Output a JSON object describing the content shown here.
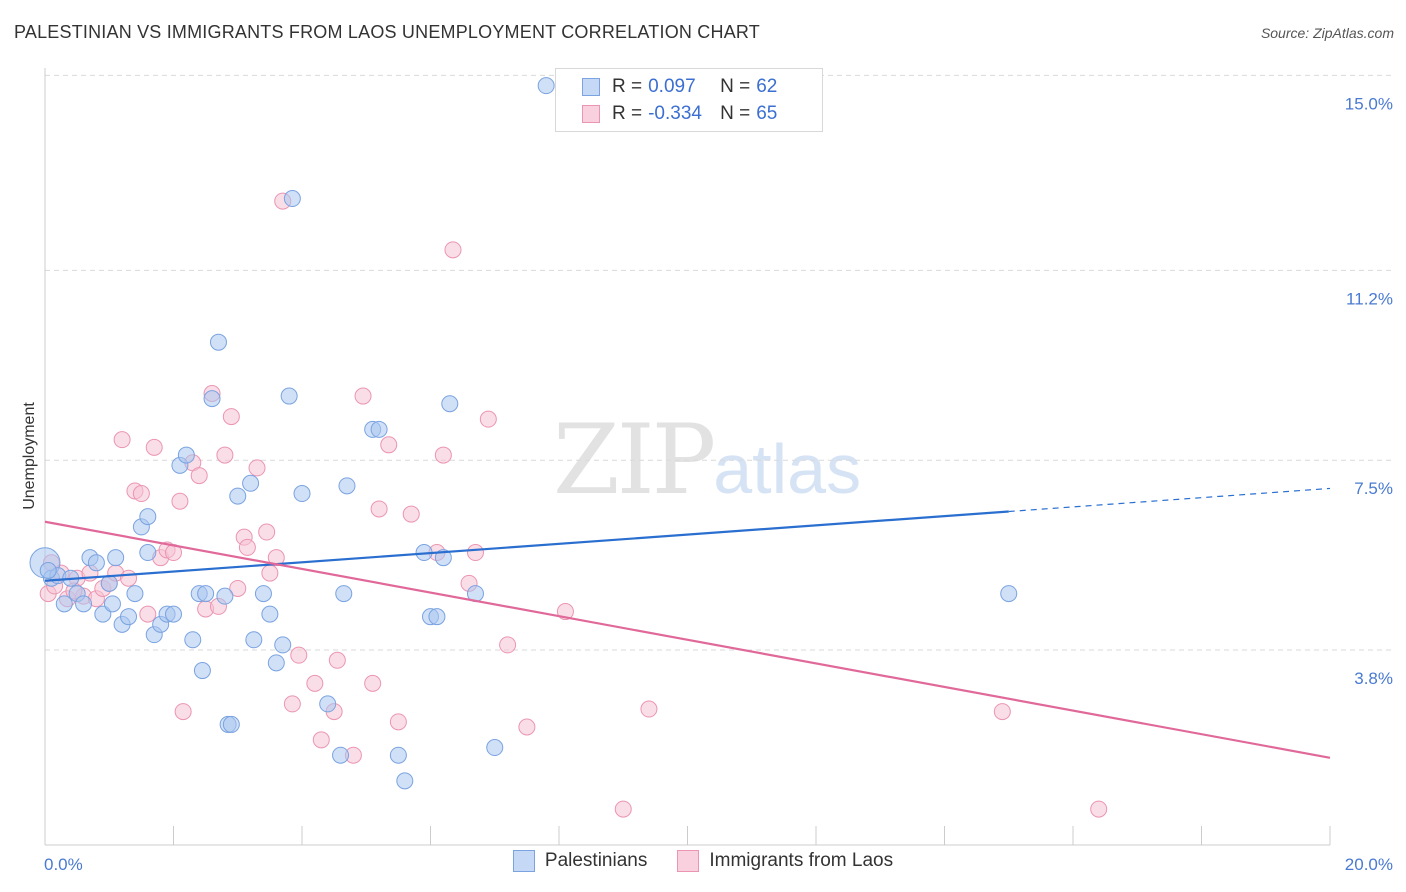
{
  "header": {
    "title": "PALESTINIAN VS IMMIGRANTS FROM LAOS UNEMPLOYMENT CORRELATION CHART",
    "source": "Source: ZipAtlas.com"
  },
  "watermark": {
    "zip": "ZIP",
    "atlas": "atlas"
  },
  "legend": {
    "row1": {
      "r_label": "R =",
      "r_value": "0.097",
      "n_label": "N =",
      "n_value": "62"
    },
    "row2": {
      "r_label": "R =",
      "r_value": "-0.334",
      "n_label": "N =",
      "n_value": "65"
    }
  },
  "bottom_legend": {
    "series1": "Palestinians",
    "series2": "Immigrants from Laos"
  },
  "colors": {
    "blue_fill": "#a9c6f0",
    "blue_stroke": "#7aa3e0",
    "blue_line": "#2a6fd0",
    "pink_fill": "#f6c3d3",
    "pink_stroke": "#eb95b2",
    "pink_line": "#e0699a",
    "grid": "#d9d9d9",
    "tick_text": "#4a7ad1"
  },
  "chart_data": {
    "type": "scatter",
    "title": "PALESTINIAN VS IMMIGRANTS FROM LAOS UNEMPLOYMENT CORRELATION CHART",
    "xlabel": "",
    "ylabel": "Unemployment",
    "xlim": [
      0,
      20
    ],
    "ylim": [
      0,
      15.3
    ],
    "x_ticks": [
      {
        "value": 0,
        "label": "0.0%"
      },
      {
        "value": 20,
        "label": "20.0%"
      }
    ],
    "y_ticks": [
      {
        "value": 3.8,
        "label": "3.8%"
      },
      {
        "value": 7.5,
        "label": "7.5%"
      },
      {
        "value": 11.2,
        "label": "11.2%"
      },
      {
        "value": 15.0,
        "label": "15.0%"
      }
    ],
    "grid": "horizontal dashed",
    "legend_position": "top-center",
    "series": [
      {
        "name": "Palestinians",
        "color": "#a9c6f0",
        "r": 0.097,
        "n": 62,
        "trend": {
          "x0": 0,
          "y0": 5.15,
          "x1": 15.0,
          "y1": 6.5,
          "dash_to_x": 20,
          "dash_to_y": 6.95
        },
        "points": [
          [
            0.0,
            5.5
          ],
          [
            0.1,
            5.2
          ],
          [
            0.2,
            5.25
          ],
          [
            0.3,
            4.7
          ],
          [
            0.4,
            5.2
          ],
          [
            0.5,
            4.9
          ],
          [
            0.6,
            4.7
          ],
          [
            0.7,
            5.6
          ],
          [
            0.8,
            5.5
          ],
          [
            0.9,
            4.5
          ],
          [
            1.0,
            5.1
          ],
          [
            1.05,
            4.7
          ],
          [
            1.1,
            5.6
          ],
          [
            1.2,
            4.3
          ],
          [
            1.3,
            4.45
          ],
          [
            1.4,
            4.9
          ],
          [
            1.5,
            6.2
          ],
          [
            1.6,
            6.4
          ],
          [
            1.6,
            5.7
          ],
          [
            1.7,
            4.1
          ],
          [
            1.8,
            4.3
          ],
          [
            1.9,
            4.5
          ],
          [
            2.0,
            4.5
          ],
          [
            2.1,
            7.4
          ],
          [
            2.2,
            7.6
          ],
          [
            2.3,
            4.0
          ],
          [
            2.4,
            4.9
          ],
          [
            2.45,
            3.4
          ],
          [
            2.5,
            4.9
          ],
          [
            2.6,
            8.7
          ],
          [
            2.7,
            9.8
          ],
          [
            2.8,
            4.85
          ],
          [
            2.85,
            2.35
          ],
          [
            2.9,
            2.35
          ],
          [
            3.0,
            6.8
          ],
          [
            3.2,
            7.05
          ],
          [
            3.25,
            4.0
          ],
          [
            3.4,
            4.9
          ],
          [
            3.5,
            4.5
          ],
          [
            3.6,
            3.55
          ],
          [
            3.7,
            3.9
          ],
          [
            3.8,
            8.75
          ],
          [
            3.85,
            12.6
          ],
          [
            4.0,
            6.85
          ],
          [
            4.4,
            2.75
          ],
          [
            4.6,
            1.75
          ],
          [
            4.65,
            4.9
          ],
          [
            4.7,
            7.0
          ],
          [
            5.1,
            8.1
          ],
          [
            5.2,
            8.1
          ],
          [
            5.5,
            1.75
          ],
          [
            5.6,
            1.25
          ],
          [
            5.9,
            5.7
          ],
          [
            6.0,
            4.45
          ],
          [
            6.1,
            4.45
          ],
          [
            6.2,
            5.6
          ],
          [
            6.3,
            8.6
          ],
          [
            6.7,
            4.9
          ],
          [
            7.0,
            1.9
          ],
          [
            7.8,
            14.8
          ],
          [
            15.0,
            4.9
          ],
          [
            0.05,
            5.35
          ]
        ]
      },
      {
        "name": "Immigrants from Laos",
        "color": "#f6c3d3",
        "r": -0.334,
        "n": 65,
        "trend": {
          "x0": 0,
          "y0": 6.3,
          "x1": 20,
          "y1": 1.7
        },
        "points": [
          [
            0.05,
            4.9
          ],
          [
            0.15,
            5.05
          ],
          [
            0.25,
            5.3
          ],
          [
            0.35,
            4.8
          ],
          [
            0.5,
            5.2
          ],
          [
            0.6,
            4.85
          ],
          [
            0.7,
            5.3
          ],
          [
            0.8,
            4.8
          ],
          [
            0.9,
            5.0
          ],
          [
            1.0,
            5.1
          ],
          [
            1.1,
            5.3
          ],
          [
            1.2,
            7.9
          ],
          [
            1.3,
            5.2
          ],
          [
            1.4,
            6.9
          ],
          [
            1.5,
            6.85
          ],
          [
            1.6,
            4.5
          ],
          [
            1.7,
            7.75
          ],
          [
            1.8,
            5.6
          ],
          [
            1.9,
            5.75
          ],
          [
            2.0,
            5.7
          ],
          [
            2.1,
            6.7
          ],
          [
            2.15,
            2.6
          ],
          [
            2.3,
            7.45
          ],
          [
            2.4,
            7.2
          ],
          [
            2.5,
            4.6
          ],
          [
            2.6,
            8.8
          ],
          [
            2.7,
            4.65
          ],
          [
            2.8,
            7.6
          ],
          [
            2.9,
            8.35
          ],
          [
            3.0,
            5.0
          ],
          [
            3.1,
            6.0
          ],
          [
            3.15,
            5.8
          ],
          [
            3.3,
            7.35
          ],
          [
            3.45,
            6.1
          ],
          [
            3.5,
            5.3
          ],
          [
            3.6,
            5.6
          ],
          [
            3.7,
            12.55
          ],
          [
            3.85,
            2.75
          ],
          [
            3.95,
            3.7
          ],
          [
            4.2,
            3.15
          ],
          [
            4.3,
            2.05
          ],
          [
            4.5,
            2.6
          ],
          [
            4.55,
            3.6
          ],
          [
            4.8,
            1.75
          ],
          [
            4.95,
            8.75
          ],
          [
            5.1,
            3.15
          ],
          [
            5.2,
            6.55
          ],
          [
            5.35,
            7.8
          ],
          [
            5.5,
            2.4
          ],
          [
            5.7,
            6.45
          ],
          [
            6.1,
            5.7
          ],
          [
            6.2,
            7.6
          ],
          [
            6.35,
            11.6
          ],
          [
            6.6,
            5.1
          ],
          [
            6.7,
            5.7
          ],
          [
            6.9,
            8.3
          ],
          [
            7.2,
            3.9
          ],
          [
            7.5,
            2.3
          ],
          [
            8.1,
            4.55
          ],
          [
            9.0,
            0.7
          ],
          [
            9.4,
            2.65
          ],
          [
            14.9,
            2.6
          ],
          [
            16.4,
            0.7
          ],
          [
            0.1,
            5.5
          ],
          [
            0.45,
            4.95
          ]
        ]
      }
    ]
  }
}
